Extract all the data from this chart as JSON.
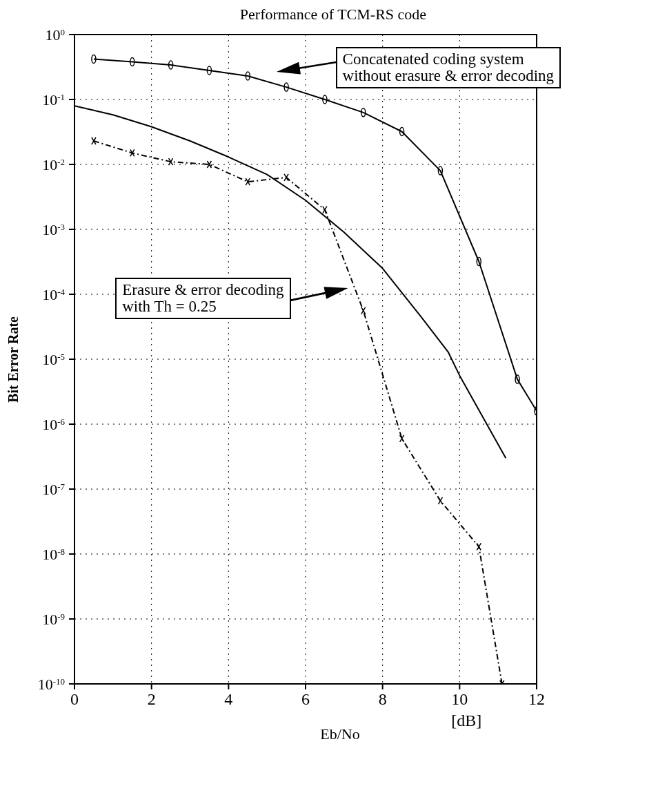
{
  "chart_data": {
    "type": "line",
    "title": "Performance of TCM-RS code",
    "xlabel": "Eb/No",
    "ylabel": "Bit Error Rate",
    "annotations": [
      "Concatenated coding system\nwithout erasure & error decoding",
      "Erasure & error decoding\nwith Th = 0.25",
      "[dB]"
    ],
    "series": [
      {
        "color": "#000000",
        "marker": "circle",
        "line_style": "solid",
        "x": [
          0.5,
          1.5,
          2.5,
          3.5,
          4.5,
          5.5,
          6.5,
          7.5,
          8.5,
          9.5,
          10.5,
          11.5,
          12
        ],
        "values": [
          0.42,
          0.38,
          0.34,
          0.28,
          0.23,
          0.155,
          0.1,
          0.063,
          0.032,
          0.008,
          0.00032,
          4.9e-06,
          1.6e-06
        ]
      },
      {
        "color": "#000000",
        "marker": "none",
        "line_style": "solid",
        "x": [
          0,
          1,
          2,
          3,
          4,
          5,
          6,
          7,
          8,
          9,
          9.7,
          10,
          11.2
        ],
        "values": [
          0.08,
          0.058,
          0.038,
          0.023,
          0.013,
          0.007,
          0.0028,
          0.0009,
          0.00025,
          4.5e-05,
          1.3e-05,
          5.6e-06,
          3e-07
        ]
      },
      {
        "color": "#000000",
        "marker": "cross",
        "line_style": "dashed",
        "x": [
          0.5,
          1.5,
          2.5,
          3.5,
          4.5,
          5.5,
          6.5,
          7.5,
          8.5,
          9.5,
          10.5,
          11.1
        ],
        "values": [
          0.023,
          0.015,
          0.011,
          0.01,
          0.0054,
          0.0063,
          0.002,
          5.6e-05,
          6e-07,
          6.6e-08,
          1.3e-08,
          1e-10
        ]
      }
    ],
    "xlim": [
      0,
      12
    ],
    "xticks": [
      0,
      2,
      4,
      6,
      8,
      10,
      12
    ],
    "ylim": [
      1e-10,
      1
    ],
    "log": "y",
    "yticks": [
      {
        "value": 1,
        "label": "10$^{0}$"
      },
      {
        "value": 0.1,
        "label": "10$^{-1}$"
      },
      {
        "value": 0.01,
        "label": "10$^{-2}$"
      },
      {
        "value": 0.001,
        "label": "10$^{-3}$"
      },
      {
        "value": 0.0001,
        "label": "10$^{-4}$"
      },
      {
        "value": 1e-05,
        "label": "10$^{-5}$"
      },
      {
        "value": 1e-06,
        "label": "10$^{-6}$"
      },
      {
        "value": 1e-07,
        "label": "10$^{-7}$"
      },
      {
        "value": 1e-08,
        "label": "10$^{-8}$"
      },
      {
        "value": 1e-09,
        "label": "10$^{-9}$"
      },
      {
        "value": 1e-10,
        "label": "10$^{-10}$"
      }
    ],
    "grid": true,
    "legend": false
  }
}
